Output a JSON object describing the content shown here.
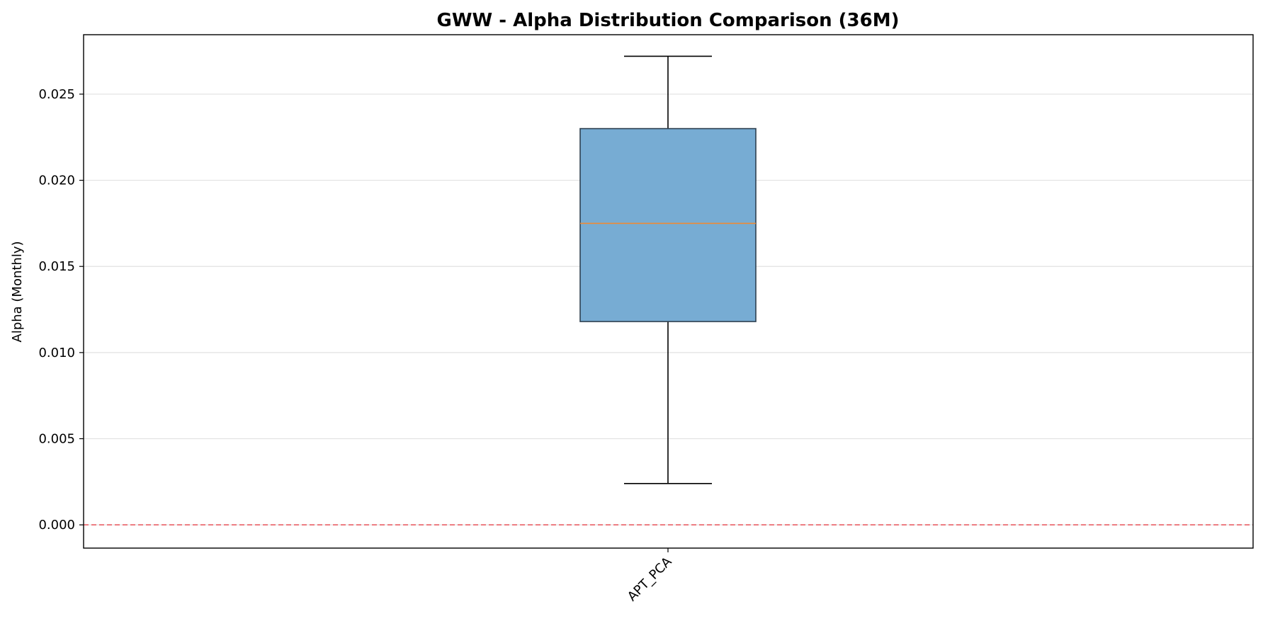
{
  "chart_data": {
    "type": "box",
    "title": "GWW - Alpha Distribution Comparison (36M)",
    "xlabel": "",
    "ylabel": "Alpha (Monthly)",
    "ylim": [
      -0.00135,
      0.02845
    ],
    "yticks": [
      0.0,
      0.005,
      0.01,
      0.015,
      0.02,
      0.025
    ],
    "ytick_labels": [
      "0.000",
      "0.005",
      "0.010",
      "0.015",
      "0.020",
      "0.025"
    ],
    "categories": [
      "APT_PCA"
    ],
    "boxes": [
      {
        "name": "APT_PCA",
        "whisker_low": 0.0024,
        "q1": 0.0118,
        "median": 0.0175,
        "q3": 0.023,
        "whisker_high": 0.0272
      }
    ],
    "reference_line": {
      "y": 0.0,
      "style": "dashed",
      "color": "#e8535a"
    },
    "grid": "y-major",
    "colors": {
      "box_fill": "#77acd3",
      "box_edge": "#2f4050",
      "median": "#f08a33",
      "whisker": "#000000",
      "grid": "#e2e2e2",
      "reference": "#e8535a"
    }
  }
}
